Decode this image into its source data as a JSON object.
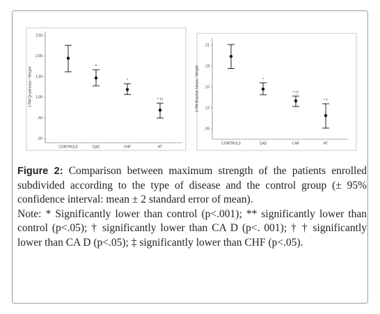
{
  "chart_data": [
    {
      "type": "errorbar",
      "ylabel": "1 RM Quadriceps / Weight",
      "categories": [
        "CONTROLS",
        "CAD",
        "CHF",
        "HT"
      ],
      "values": [
        1.95,
        1.47,
        1.19,
        0.69
      ],
      "lower": [
        1.62,
        1.28,
        1.07,
        0.5
      ],
      "upper": [
        2.26,
        1.67,
        1.33,
        0.86
      ],
      "annotations": [
        null,
        "**",
        "*",
        "* ††"
      ],
      "ylim": [
        -0.1,
        2.6
      ],
      "yticks": [
        {
          "value": 0,
          "label": ",00"
        },
        {
          "value": 0.5,
          "label": ",50"
        },
        {
          "value": 1,
          "label": "1,00"
        },
        {
          "value": 1.5,
          "label": "1,50"
        },
        {
          "value": 2,
          "label": "2,00"
        },
        {
          "value": 2.5,
          "label": "2,50"
        }
      ]
    },
    {
      "type": "errorbar",
      "ylabel": "1 RM Brachial biceps / Weight",
      "categories": [
        "CONTROLS",
        "CAD",
        "CHF",
        "HT"
      ],
      "values": [
        0.194,
        0.147,
        0.13,
        0.109
      ],
      "lower": [
        0.1765,
        0.139,
        0.122,
        0.091
      ],
      "upper": [
        0.211,
        0.156,
        0.137,
        0.126
      ],
      "annotations": [
        null,
        "*",
        "* ††",
        "* †"
      ],
      "ylim": [
        0.075,
        0.22
      ],
      "yticks": [
        {
          "value": 0.09,
          "label": ",09"
        },
        {
          "value": 0.12,
          "label": ",12"
        },
        {
          "value": 0.15,
          "label": ",15"
        },
        {
          "value": 0.18,
          "label": ",18"
        },
        {
          "value": 0.21,
          "label": ",21"
        }
      ]
    }
  ],
  "caption": {
    "label": "Figure 2:",
    "text": " Comparison between maximum strength of the patients enrolled subdivided according to the type of disease and the control group (± 95% confidence interval: mean ± 2 standard error of mean).",
    "note": "Note: * Significantly lower than control (p<.001); ** significantly lower than control (p<.05); † significantly lower than CA D (p<. 001); † † significantly lower than CA D (p<.05); ‡ significantly lower than CHF (p<.05)."
  }
}
